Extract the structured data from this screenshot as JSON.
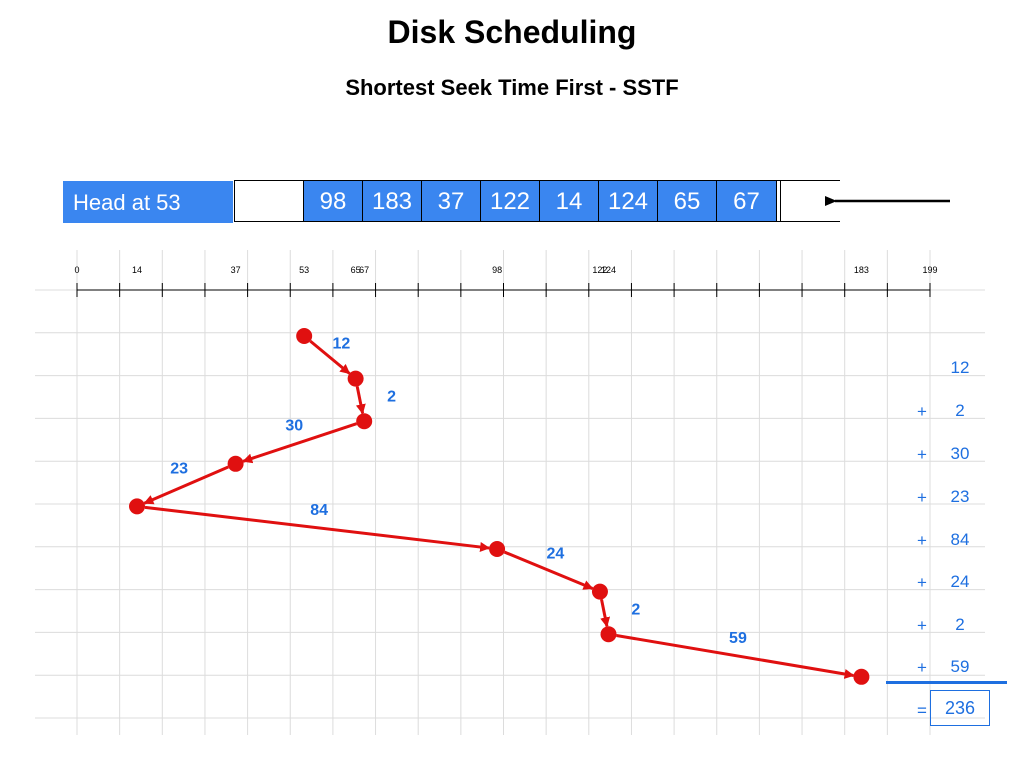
{
  "title": "Disk Scheduling",
  "subtitle": "Shortest Seek Time First - SSTF",
  "head_label": "Head at 53",
  "queue": [
    "98",
    "183",
    "37",
    "122",
    "14",
    "124",
    "65",
    "67"
  ],
  "axis_ticks": [
    "0",
    "14",
    "37",
    "53",
    "65",
    "67",
    "98",
    "122",
    "124",
    "183",
    "199"
  ],
  "seek_path": [
    {
      "cyl": 53,
      "dist": ""
    },
    {
      "cyl": 65,
      "dist": "12"
    },
    {
      "cyl": 67,
      "dist": "2"
    },
    {
      "cyl": 37,
      "dist": "30"
    },
    {
      "cyl": 14,
      "dist": "23"
    },
    {
      "cyl": 98,
      "dist": "84"
    },
    {
      "cyl": 122,
      "dist": "24"
    },
    {
      "cyl": 124,
      "dist": "2"
    },
    {
      "cyl": 183,
      "dist": "59"
    }
  ],
  "sum_values": [
    "12",
    "2",
    "30",
    "23",
    "84",
    "24",
    "2",
    "59"
  ],
  "plus_sign": "+",
  "equals_sign": "=",
  "total": "236",
  "colors": {
    "accent": "#3a86f0",
    "path": "#e01010",
    "label": "#1e6fe0"
  }
}
